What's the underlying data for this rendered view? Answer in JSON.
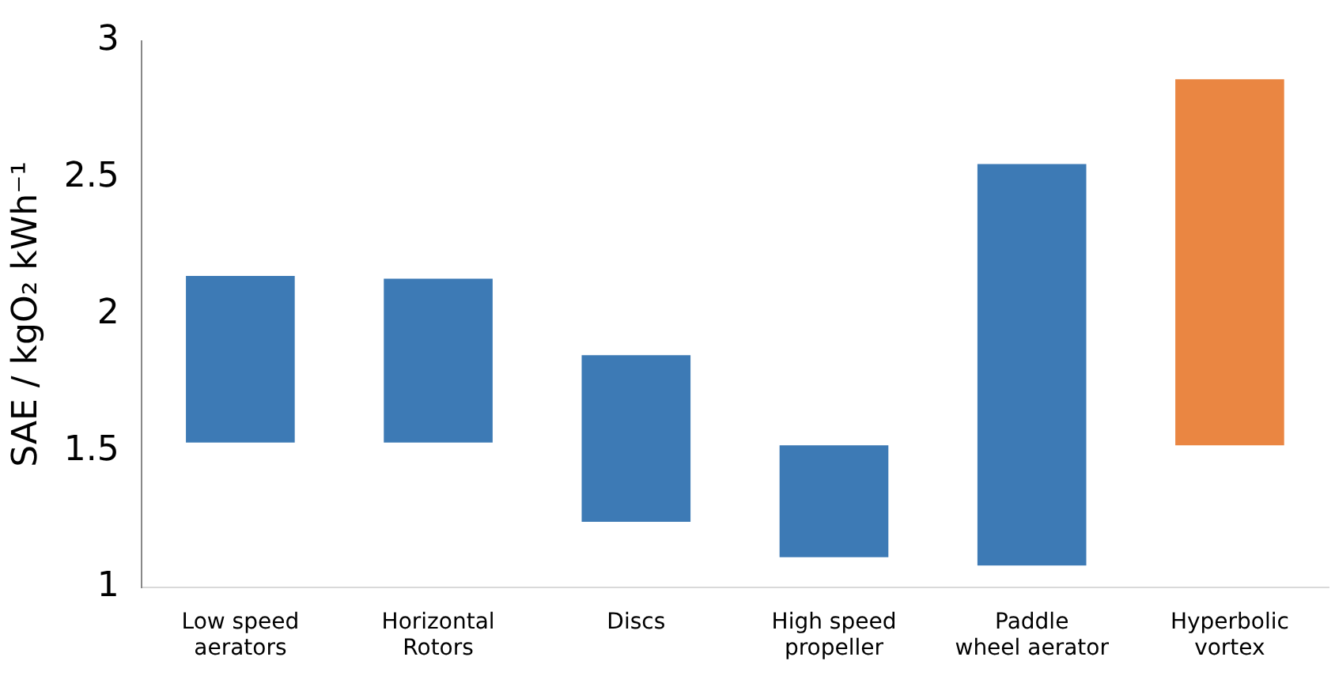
{
  "chart_data": {
    "type": "bar",
    "ylabel": "SAE / kgO₂ kWh⁻¹",
    "categories": [
      "Low speed\naerators",
      "Horizontal\nRotors",
      "Discs",
      "High speed\npropeller",
      "Paddle\nwheel aerator",
      "Hyperbolic\nvortex"
    ],
    "base": [
      1.53,
      1.53,
      1.24,
      1.11,
      1.08,
      1.52
    ],
    "values": [
      0.61,
      0.6,
      0.61,
      0.41,
      1.47,
      1.34
    ],
    "colors": [
      "#3d7ab5",
      "#3d7ab5",
      "#3d7ab5",
      "#3d7ab5",
      "#3d7ab5",
      "#ea8642"
    ],
    "ylim": [
      1,
      3
    ],
    "yticks": [
      1,
      1.5,
      2,
      2.5,
      3
    ],
    "grid": false,
    "legend": false
  }
}
